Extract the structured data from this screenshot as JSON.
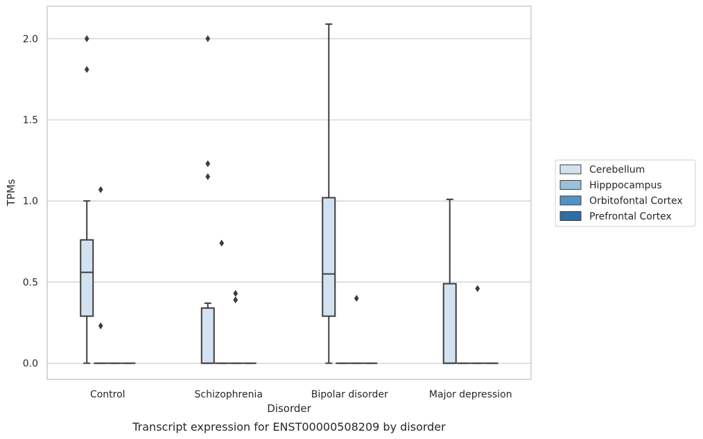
{
  "chart_data": {
    "type": "box",
    "xlabel": "Disorder",
    "ylabel": "TPMs",
    "caption": "Transcript expression for ENST00000508209 by disorder",
    "categories": [
      "Control",
      "Schizophrenia",
      "Bipolar disorder",
      "Major depression"
    ],
    "ylim": [
      -0.1,
      2.2
    ],
    "yticks": [
      0.0,
      0.5,
      1.0,
      1.5,
      2.0
    ],
    "ytick_labels": [
      "0.0",
      "0.5",
      "1.0",
      "1.5",
      "2.0"
    ],
    "grid": "horizontal",
    "legend_position": "right",
    "series": [
      {
        "name": "Cerebellum",
        "color": "#d2e2f0",
        "boxes": [
          {
            "q1": 0.29,
            "median": 0.56,
            "q3": 0.76,
            "whislo": 0.0,
            "whishi": 1.0,
            "fliers": [
              1.81,
              2.0
            ]
          },
          {
            "q1": 0.0,
            "median": 0.0,
            "q3": 0.34,
            "whislo": 0.0,
            "whishi": 0.37,
            "fliers": [
              1.15,
              1.23,
              2.0
            ]
          },
          {
            "q1": 0.29,
            "median": 0.55,
            "q3": 1.02,
            "whislo": 0.0,
            "whishi": 2.09,
            "fliers": []
          },
          {
            "q1": 0.0,
            "median": 0.0,
            "q3": 0.49,
            "whislo": 0.0,
            "whishi": 1.01,
            "fliers": []
          }
        ]
      },
      {
        "name": "Hipppocampus",
        "color": "#9ac0da",
        "boxes": [
          {
            "q1": 0.0,
            "median": 0.0,
            "q3": 0.0,
            "whislo": 0.0,
            "whishi": 0.0,
            "fliers": [
              0.23,
              1.07
            ]
          },
          {
            "q1": 0.0,
            "median": 0.0,
            "q3": 0.0,
            "whislo": 0.0,
            "whishi": 0.0,
            "fliers": [
              0.74
            ]
          },
          {
            "q1": 0.0,
            "median": 0.0,
            "q3": 0.0,
            "whislo": 0.0,
            "whishi": 0.0,
            "fliers": []
          },
          {
            "q1": 0.0,
            "median": 0.0,
            "q3": 0.0,
            "whislo": 0.0,
            "whishi": 0.0,
            "fliers": []
          }
        ]
      },
      {
        "name": "Orbitofontal Cortex",
        "color": "#5393c3",
        "boxes": [
          {
            "q1": 0.0,
            "median": 0.0,
            "q3": 0.0,
            "whislo": 0.0,
            "whishi": 0.0,
            "fliers": []
          },
          {
            "q1": 0.0,
            "median": 0.0,
            "q3": 0.0,
            "whislo": 0.0,
            "whishi": 0.0,
            "fliers": [
              0.39,
              0.43
            ]
          },
          {
            "q1": 0.0,
            "median": 0.0,
            "q3": 0.0,
            "whislo": 0.0,
            "whishi": 0.0,
            "fliers": [
              0.4
            ]
          },
          {
            "q1": 0.0,
            "median": 0.0,
            "q3": 0.0,
            "whislo": 0.0,
            "whishi": 0.0,
            "fliers": [
              0.46
            ]
          }
        ]
      },
      {
        "name": "Prefrontal Cortex",
        "color": "#2f6ea4",
        "boxes": [
          {
            "q1": 0.0,
            "median": 0.0,
            "q3": 0.0,
            "whislo": 0.0,
            "whishi": 0.0,
            "fliers": []
          },
          {
            "q1": 0.0,
            "median": 0.0,
            "q3": 0.0,
            "whislo": 0.0,
            "whishi": 0.0,
            "fliers": []
          },
          {
            "q1": 0.0,
            "median": 0.0,
            "q3": 0.0,
            "whislo": 0.0,
            "whishi": 0.0,
            "fliers": []
          },
          {
            "q1": 0.0,
            "median": 0.0,
            "q3": 0.0,
            "whislo": 0.0,
            "whishi": 0.0,
            "fliers": []
          }
        ]
      }
    ]
  }
}
